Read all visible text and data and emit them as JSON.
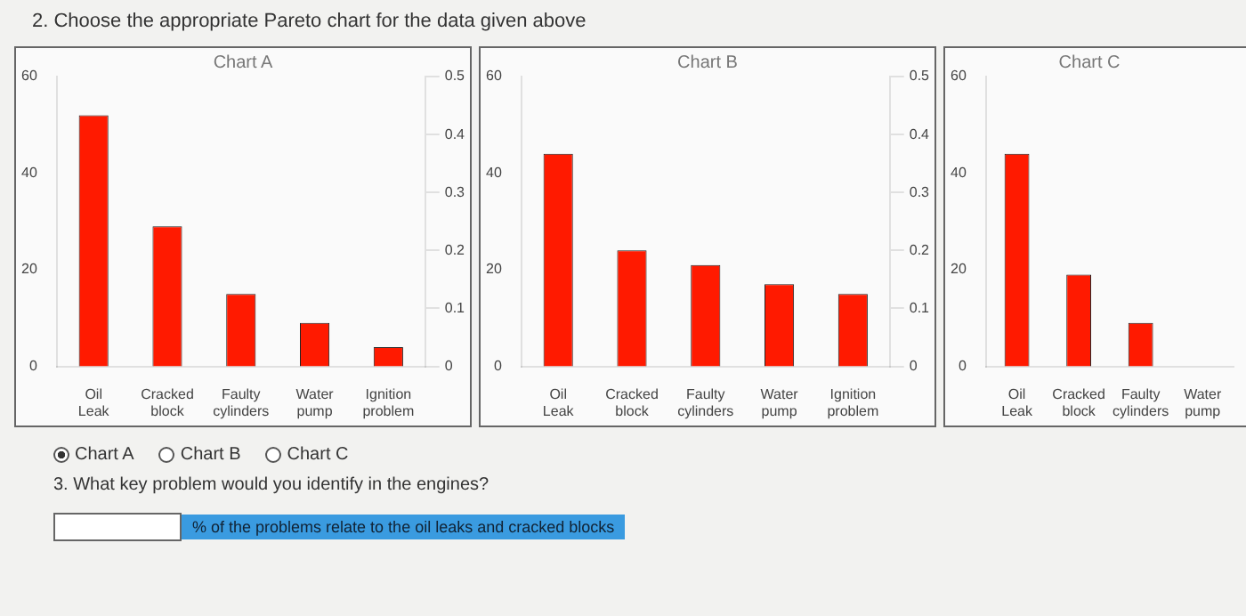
{
  "chart_data": [
    {
      "type": "bar",
      "title": "Chart A",
      "categories": [
        "Oil Leak",
        "Cracked block",
        "Faulty cylinders",
        "Water pump",
        "Ignition problem"
      ],
      "values": [
        52,
        29,
        15,
        9,
        4
      ],
      "color": "#ff1a00",
      "ylim": [
        0,
        60
      ],
      "yticks": [
        0,
        20,
        40,
        60
      ],
      "y2lim": [
        0,
        0.5
      ],
      "y2ticks": [
        0,
        0.1,
        0.2,
        0.3,
        0.4,
        0.5
      ],
      "grid": false,
      "legend": false,
      "annotations": [
        "2. Choose the appropriate Pareto chart for the data given above",
        "Chart A",
        "Chart B",
        "Chart C",
        "3. What key problem would you identify in the engines?",
        "% of the problems relate to the oil leaks and cracked blocks"
      ]
    },
    {
      "type": "bar",
      "title": "Chart B",
      "categories": [
        "Oil Leak",
        "Cracked block",
        "Faulty cylinders",
        "Water pump",
        "Ignition problem"
      ],
      "values": [
        44,
        24,
        21,
        17,
        15
      ],
      "color": "#ff1a00",
      "ylim": [
        0,
        60
      ],
      "yticks": [
        0,
        20,
        40,
        60
      ],
      "y2lim": [
        0,
        0.5
      ],
      "y2ticks": [
        0,
        0.1,
        0.2,
        0.3,
        0.4,
        0.5
      ],
      "grid": false,
      "legend": false
    },
    {
      "type": "bar",
      "title": "Chart C",
      "categories": [
        "Oil Leak",
        "Cracked block",
        "Faulty cylinders",
        "Water pump"
      ],
      "values": [
        44,
        19,
        9,
        null
      ],
      "color": "#ff1a00",
      "ylim": [
        0,
        60
      ],
      "yticks": [
        0,
        20,
        40,
        60
      ],
      "grid": false,
      "legend": false
    }
  ]
}
